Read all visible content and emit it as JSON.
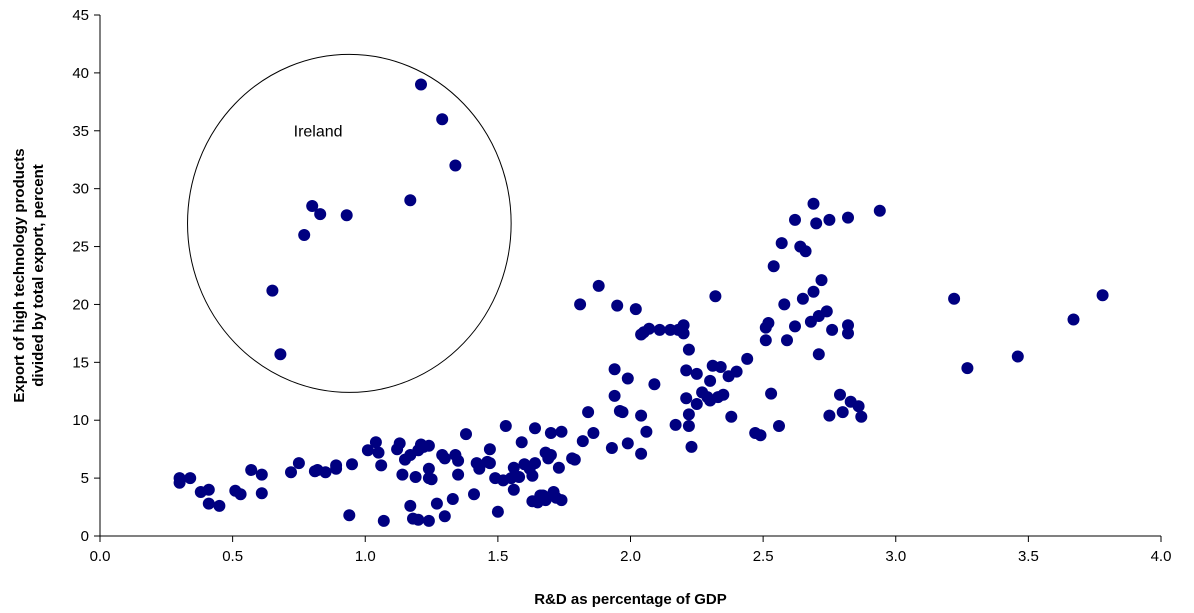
{
  "chart_data": {
    "type": "scatter",
    "title": "",
    "xlabel": "R&D as percentage of GDP",
    "ylabel_lines": [
      "Export of high technology products",
      "divided by total export, percent"
    ],
    "xlim": [
      0,
      4
    ],
    "ylim": [
      0,
      45
    ],
    "x_ticks": [
      "0.0",
      "0.5",
      "1.0",
      "1.5",
      "2.0",
      "2.5",
      "3.0",
      "3.5",
      "4.0"
    ],
    "y_ticks": [
      "0",
      "5",
      "10",
      "15",
      "20",
      "25",
      "30",
      "35",
      "40",
      "45"
    ],
    "grid": false,
    "legend": "none",
    "marker_color": "#000080",
    "annotation": {
      "text": "Ireland",
      "circle_center": [
        0.94,
        27
      ],
      "circle_radius_x": 0.61,
      "circle_radius_y": 14.6
    },
    "points": [
      [
        1.21,
        39.0
      ],
      [
        1.29,
        36.0
      ],
      [
        1.34,
        32.0
      ],
      [
        1.17,
        29.0
      ],
      [
        0.8,
        28.5
      ],
      [
        0.83,
        27.8
      ],
      [
        0.93,
        27.7
      ],
      [
        0.77,
        26.0
      ],
      [
        0.65,
        21.2
      ],
      [
        0.68,
        15.7
      ],
      [
        0.3,
        5.0
      ],
      [
        0.34,
        5.0
      ],
      [
        0.3,
        4.6
      ],
      [
        0.38,
        3.8
      ],
      [
        0.41,
        4.0
      ],
      [
        0.41,
        2.8
      ],
      [
        0.45,
        2.6
      ],
      [
        0.51,
        3.9
      ],
      [
        0.53,
        3.6
      ],
      [
        0.57,
        5.7
      ],
      [
        0.61,
        5.3
      ],
      [
        0.61,
        3.7
      ],
      [
        0.72,
        5.5
      ],
      [
        0.75,
        6.3
      ],
      [
        0.81,
        5.6
      ],
      [
        0.82,
        5.7
      ],
      [
        0.85,
        5.5
      ],
      [
        0.89,
        6.1
      ],
      [
        0.89,
        5.8
      ],
      [
        0.95,
        6.2
      ],
      [
        1.01,
        7.4
      ],
      [
        1.04,
        8.1
      ],
      [
        1.05,
        7.2
      ],
      [
        1.06,
        6.1
      ],
      [
        1.12,
        7.5
      ],
      [
        1.13,
        8.0
      ],
      [
        1.14,
        5.3
      ],
      [
        1.15,
        6.6
      ],
      [
        1.17,
        7.0
      ],
      [
        1.19,
        5.1
      ],
      [
        1.2,
        7.4
      ],
      [
        1.21,
        7.9
      ],
      [
        1.22,
        7.7
      ],
      [
        1.24,
        7.8
      ],
      [
        1.24,
        5.8
      ],
      [
        1.24,
        5.0
      ],
      [
        1.25,
        4.9
      ],
      [
        1.29,
        7.0
      ],
      [
        1.3,
        6.7
      ],
      [
        1.34,
        7.0
      ],
      [
        1.38,
        8.8
      ],
      [
        1.35,
        6.5
      ],
      [
        1.35,
        5.3
      ],
      [
        1.42,
        6.3
      ],
      [
        1.43,
        5.8
      ],
      [
        1.46,
        6.4
      ],
      [
        1.47,
        7.5
      ],
      [
        1.47,
        6.3
      ],
      [
        1.49,
        5.0
      ],
      [
        1.53,
        9.5
      ],
      [
        1.52,
        4.8
      ],
      [
        1.55,
        5.0
      ],
      [
        1.56,
        5.9
      ],
      [
        1.56,
        4.0
      ],
      [
        1.58,
        5.1
      ],
      [
        1.59,
        8.1
      ],
      [
        1.6,
        6.2
      ],
      [
        1.62,
        5.8
      ],
      [
        1.63,
        5.2
      ],
      [
        1.64,
        9.3
      ],
      [
        1.64,
        6.3
      ],
      [
        1.65,
        2.9
      ],
      [
        1.66,
        3.5
      ],
      [
        1.67,
        3.5
      ],
      [
        1.68,
        7.2
      ],
      [
        1.69,
        6.7
      ],
      [
        1.7,
        7.0
      ],
      [
        1.7,
        8.9
      ],
      [
        1.71,
        3.8
      ],
      [
        1.72,
        3.3
      ],
      [
        1.73,
        5.9
      ],
      [
        1.74,
        3.1
      ],
      [
        1.74,
        9.0
      ],
      [
        1.78,
        6.7
      ],
      [
        1.79,
        6.6
      ],
      [
        1.81,
        20.0
      ],
      [
        1.82,
        8.2
      ],
      [
        1.84,
        10.7
      ],
      [
        1.86,
        8.9
      ],
      [
        1.88,
        21.6
      ],
      [
        1.93,
        7.6
      ],
      [
        1.94,
        14.4
      ],
      [
        1.94,
        12.1
      ],
      [
        1.95,
        19.9
      ],
      [
        1.96,
        10.8
      ],
      [
        1.97,
        10.7
      ],
      [
        1.99,
        8.0
      ],
      [
        1.99,
        13.6
      ],
      [
        2.02,
        19.6
      ],
      [
        2.04,
        17.4
      ],
      [
        2.04,
        10.4
      ],
      [
        2.04,
        7.1
      ],
      [
        2.05,
        17.6
      ],
      [
        2.06,
        9.0
      ],
      [
        2.07,
        17.9
      ],
      [
        2.09,
        13.1
      ],
      [
        2.11,
        17.8
      ],
      [
        2.15,
        17.8
      ],
      [
        2.18,
        17.8
      ],
      [
        2.17,
        9.6
      ],
      [
        2.2,
        18.2
      ],
      [
        2.2,
        17.5
      ],
      [
        2.21,
        14.3
      ],
      [
        2.21,
        11.9
      ],
      [
        2.22,
        10.5
      ],
      [
        2.22,
        9.5
      ],
      [
        2.22,
        16.1
      ],
      [
        2.23,
        7.7
      ],
      [
        2.25,
        14.0
      ],
      [
        2.25,
        11.4
      ],
      [
        2.27,
        12.4
      ],
      [
        2.29,
        12.0
      ],
      [
        2.3,
        13.4
      ],
      [
        2.3,
        11.7
      ],
      [
        2.31,
        14.7
      ],
      [
        2.32,
        20.7
      ],
      [
        2.33,
        12.0
      ],
      [
        2.34,
        14.6
      ],
      [
        2.35,
        12.2
      ],
      [
        2.37,
        13.8
      ],
      [
        2.38,
        10.3
      ],
      [
        2.4,
        14.2
      ],
      [
        2.44,
        15.3
      ],
      [
        2.47,
        8.9
      ],
      [
        2.49,
        8.7
      ],
      [
        2.51,
        18.0
      ],
      [
        2.51,
        16.9
      ],
      [
        2.52,
        18.4
      ],
      [
        2.53,
        12.3
      ],
      [
        2.54,
        23.3
      ],
      [
        2.56,
        9.5
      ],
      [
        2.57,
        25.3
      ],
      [
        2.58,
        20.0
      ],
      [
        2.59,
        16.9
      ],
      [
        2.62,
        27.3
      ],
      [
        2.62,
        18.1
      ],
      [
        2.64,
        25.0
      ],
      [
        2.65,
        20.5
      ],
      [
        2.66,
        24.6
      ],
      [
        2.68,
        18.5
      ],
      [
        2.69,
        28.7
      ],
      [
        2.69,
        21.1
      ],
      [
        2.7,
        27.0
      ],
      [
        2.71,
        19.0
      ],
      [
        2.71,
        15.7
      ],
      [
        2.72,
        22.1
      ],
      [
        2.74,
        19.4
      ],
      [
        2.75,
        10.4
      ],
      [
        2.75,
        27.3
      ],
      [
        2.76,
        17.8
      ],
      [
        2.79,
        12.2
      ],
      [
        2.8,
        10.7
      ],
      [
        2.82,
        17.5
      ],
      [
        2.82,
        18.2
      ],
      [
        2.82,
        27.5
      ],
      [
        2.83,
        11.6
      ],
      [
        2.86,
        11.2
      ],
      [
        2.87,
        10.3
      ],
      [
        2.94,
        28.1
      ],
      [
        3.22,
        20.5
      ],
      [
        3.27,
        14.5
      ],
      [
        3.46,
        15.5
      ],
      [
        3.67,
        18.7
      ],
      [
        3.78,
        20.8
      ],
      [
        0.94,
        1.8
      ],
      [
        1.07,
        1.3
      ],
      [
        1.18,
        1.5
      ],
      [
        1.17,
        2.6
      ],
      [
        1.2,
        1.4
      ],
      [
        1.24,
        1.3
      ],
      [
        1.27,
        2.8
      ],
      [
        1.3,
        1.7
      ],
      [
        1.33,
        3.2
      ],
      [
        1.41,
        3.6
      ],
      [
        1.5,
        2.1
      ],
      [
        1.63,
        3.0
      ],
      [
        1.68,
        3.1
      ]
    ]
  }
}
